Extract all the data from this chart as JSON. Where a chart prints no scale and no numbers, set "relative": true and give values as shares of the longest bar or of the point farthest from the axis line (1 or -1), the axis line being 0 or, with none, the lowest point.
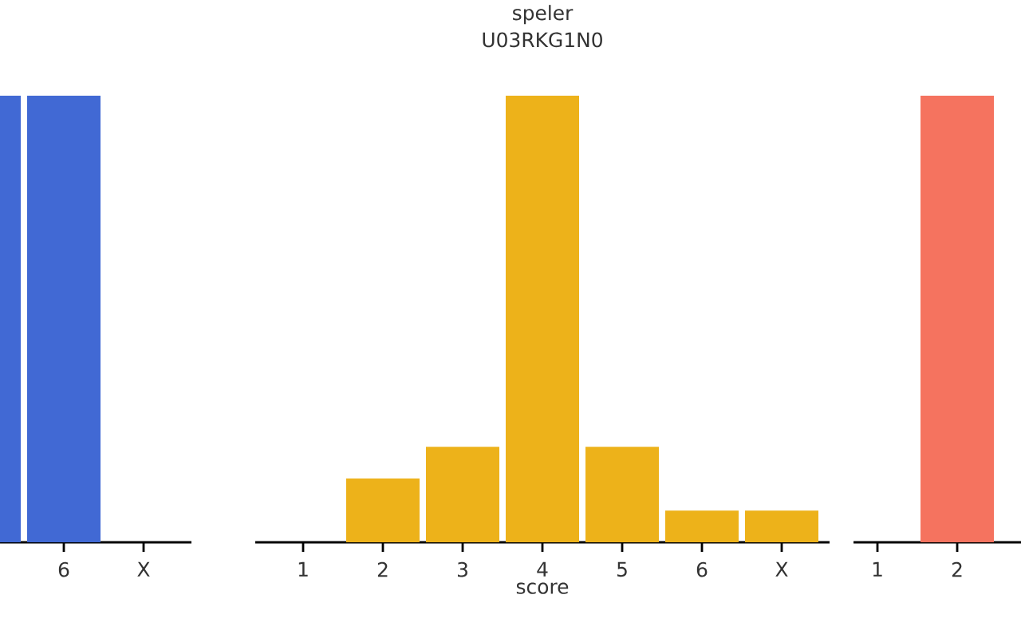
{
  "chart_data": [
    {
      "type": "bar",
      "relative": true,
      "categories": [
        null,
        "6",
        "X"
      ],
      "values": [
        1,
        1,
        0
      ],
      "color": "#4169d4"
    },
    {
      "type": "bar",
      "relative": true,
      "title": "speler",
      "subtitle": "U03RKG1N0",
      "xlabel": "score",
      "categories": [
        "1",
        "2",
        "3",
        "4",
        "5",
        "6",
        "X"
      ],
      "values": [
        0,
        0.143,
        0.214,
        1,
        0.214,
        0.071,
        0.071
      ],
      "color": "#edb21a"
    },
    {
      "type": "bar",
      "relative": true,
      "categories": [
        "1",
        "2"
      ],
      "values": [
        0,
        1
      ],
      "color": "#f5735f"
    }
  ]
}
